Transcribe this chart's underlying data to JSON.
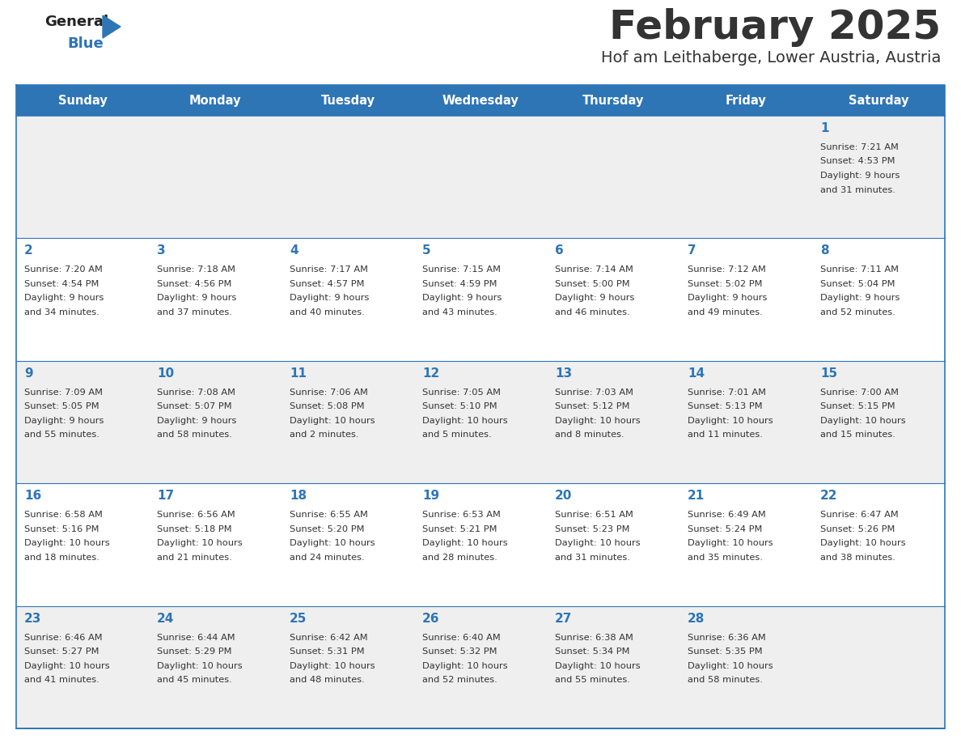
{
  "title": "February 2025",
  "subtitle": "Hof am Leithaberge, Lower Austria, Austria",
  "days_of_week": [
    "Sunday",
    "Monday",
    "Tuesday",
    "Wednesday",
    "Thursday",
    "Friday",
    "Saturday"
  ],
  "header_bg": "#2E75B6",
  "header_text": "#FFFFFF",
  "row_bg_odd": "#EFEFEF",
  "row_bg_even": "#FFFFFF",
  "cell_text_color": "#333333",
  "day_num_color": "#2E75B6",
  "border_color": "#2E75B6",
  "logo_general_color": "#222222",
  "logo_blue_color": "#2E75B6",
  "calendar_data": [
    {
      "day": 1,
      "col": 6,
      "row": 0,
      "sunrise": "7:21 AM",
      "sunset": "4:53 PM",
      "daylight_h": "9 hours",
      "daylight_m": "and 31 minutes."
    },
    {
      "day": 2,
      "col": 0,
      "row": 1,
      "sunrise": "7:20 AM",
      "sunset": "4:54 PM",
      "daylight_h": "9 hours",
      "daylight_m": "and 34 minutes."
    },
    {
      "day": 3,
      "col": 1,
      "row": 1,
      "sunrise": "7:18 AM",
      "sunset": "4:56 PM",
      "daylight_h": "9 hours",
      "daylight_m": "and 37 minutes."
    },
    {
      "day": 4,
      "col": 2,
      "row": 1,
      "sunrise": "7:17 AM",
      "sunset": "4:57 PM",
      "daylight_h": "9 hours",
      "daylight_m": "and 40 minutes."
    },
    {
      "day": 5,
      "col": 3,
      "row": 1,
      "sunrise": "7:15 AM",
      "sunset": "4:59 PM",
      "daylight_h": "9 hours",
      "daylight_m": "and 43 minutes."
    },
    {
      "day": 6,
      "col": 4,
      "row": 1,
      "sunrise": "7:14 AM",
      "sunset": "5:00 PM",
      "daylight_h": "9 hours",
      "daylight_m": "and 46 minutes."
    },
    {
      "day": 7,
      "col": 5,
      "row": 1,
      "sunrise": "7:12 AM",
      "sunset": "5:02 PM",
      "daylight_h": "9 hours",
      "daylight_m": "and 49 minutes."
    },
    {
      "day": 8,
      "col": 6,
      "row": 1,
      "sunrise": "7:11 AM",
      "sunset": "5:04 PM",
      "daylight_h": "9 hours",
      "daylight_m": "and 52 minutes."
    },
    {
      "day": 9,
      "col": 0,
      "row": 2,
      "sunrise": "7:09 AM",
      "sunset": "5:05 PM",
      "daylight_h": "9 hours",
      "daylight_m": "and 55 minutes."
    },
    {
      "day": 10,
      "col": 1,
      "row": 2,
      "sunrise": "7:08 AM",
      "sunset": "5:07 PM",
      "daylight_h": "9 hours",
      "daylight_m": "and 58 minutes."
    },
    {
      "day": 11,
      "col": 2,
      "row": 2,
      "sunrise": "7:06 AM",
      "sunset": "5:08 PM",
      "daylight_h": "10 hours",
      "daylight_m": "and 2 minutes."
    },
    {
      "day": 12,
      "col": 3,
      "row": 2,
      "sunrise": "7:05 AM",
      "sunset": "5:10 PM",
      "daylight_h": "10 hours",
      "daylight_m": "and 5 minutes."
    },
    {
      "day": 13,
      "col": 4,
      "row": 2,
      "sunrise": "7:03 AM",
      "sunset": "5:12 PM",
      "daylight_h": "10 hours",
      "daylight_m": "and 8 minutes."
    },
    {
      "day": 14,
      "col": 5,
      "row": 2,
      "sunrise": "7:01 AM",
      "sunset": "5:13 PM",
      "daylight_h": "10 hours",
      "daylight_m": "and 11 minutes."
    },
    {
      "day": 15,
      "col": 6,
      "row": 2,
      "sunrise": "7:00 AM",
      "sunset": "5:15 PM",
      "daylight_h": "10 hours",
      "daylight_m": "and 15 minutes."
    },
    {
      "day": 16,
      "col": 0,
      "row": 3,
      "sunrise": "6:58 AM",
      "sunset": "5:16 PM",
      "daylight_h": "10 hours",
      "daylight_m": "and 18 minutes."
    },
    {
      "day": 17,
      "col": 1,
      "row": 3,
      "sunrise": "6:56 AM",
      "sunset": "5:18 PM",
      "daylight_h": "10 hours",
      "daylight_m": "and 21 minutes."
    },
    {
      "day": 18,
      "col": 2,
      "row": 3,
      "sunrise": "6:55 AM",
      "sunset": "5:20 PM",
      "daylight_h": "10 hours",
      "daylight_m": "and 24 minutes."
    },
    {
      "day": 19,
      "col": 3,
      "row": 3,
      "sunrise": "6:53 AM",
      "sunset": "5:21 PM",
      "daylight_h": "10 hours",
      "daylight_m": "and 28 minutes."
    },
    {
      "day": 20,
      "col": 4,
      "row": 3,
      "sunrise": "6:51 AM",
      "sunset": "5:23 PM",
      "daylight_h": "10 hours",
      "daylight_m": "and 31 minutes."
    },
    {
      "day": 21,
      "col": 5,
      "row": 3,
      "sunrise": "6:49 AM",
      "sunset": "5:24 PM",
      "daylight_h": "10 hours",
      "daylight_m": "and 35 minutes."
    },
    {
      "day": 22,
      "col": 6,
      "row": 3,
      "sunrise": "6:47 AM",
      "sunset": "5:26 PM",
      "daylight_h": "10 hours",
      "daylight_m": "and 38 minutes."
    },
    {
      "day": 23,
      "col": 0,
      "row": 4,
      "sunrise": "6:46 AM",
      "sunset": "5:27 PM",
      "daylight_h": "10 hours",
      "daylight_m": "and 41 minutes."
    },
    {
      "day": 24,
      "col": 1,
      "row": 4,
      "sunrise": "6:44 AM",
      "sunset": "5:29 PM",
      "daylight_h": "10 hours",
      "daylight_m": "and 45 minutes."
    },
    {
      "day": 25,
      "col": 2,
      "row": 4,
      "sunrise": "6:42 AM",
      "sunset": "5:31 PM",
      "daylight_h": "10 hours",
      "daylight_m": "and 48 minutes."
    },
    {
      "day": 26,
      "col": 3,
      "row": 4,
      "sunrise": "6:40 AM",
      "sunset": "5:32 PM",
      "daylight_h": "10 hours",
      "daylight_m": "and 52 minutes."
    },
    {
      "day": 27,
      "col": 4,
      "row": 4,
      "sunrise": "6:38 AM",
      "sunset": "5:34 PM",
      "daylight_h": "10 hours",
      "daylight_m": "and 55 minutes."
    },
    {
      "day": 28,
      "col": 5,
      "row": 4,
      "sunrise": "6:36 AM",
      "sunset": "5:35 PM",
      "daylight_h": "10 hours",
      "daylight_m": "and 58 minutes."
    }
  ],
  "num_rows": 5,
  "num_cols": 7,
  "fig_width": 11.88,
  "fig_height": 9.18,
  "dpi": 100
}
